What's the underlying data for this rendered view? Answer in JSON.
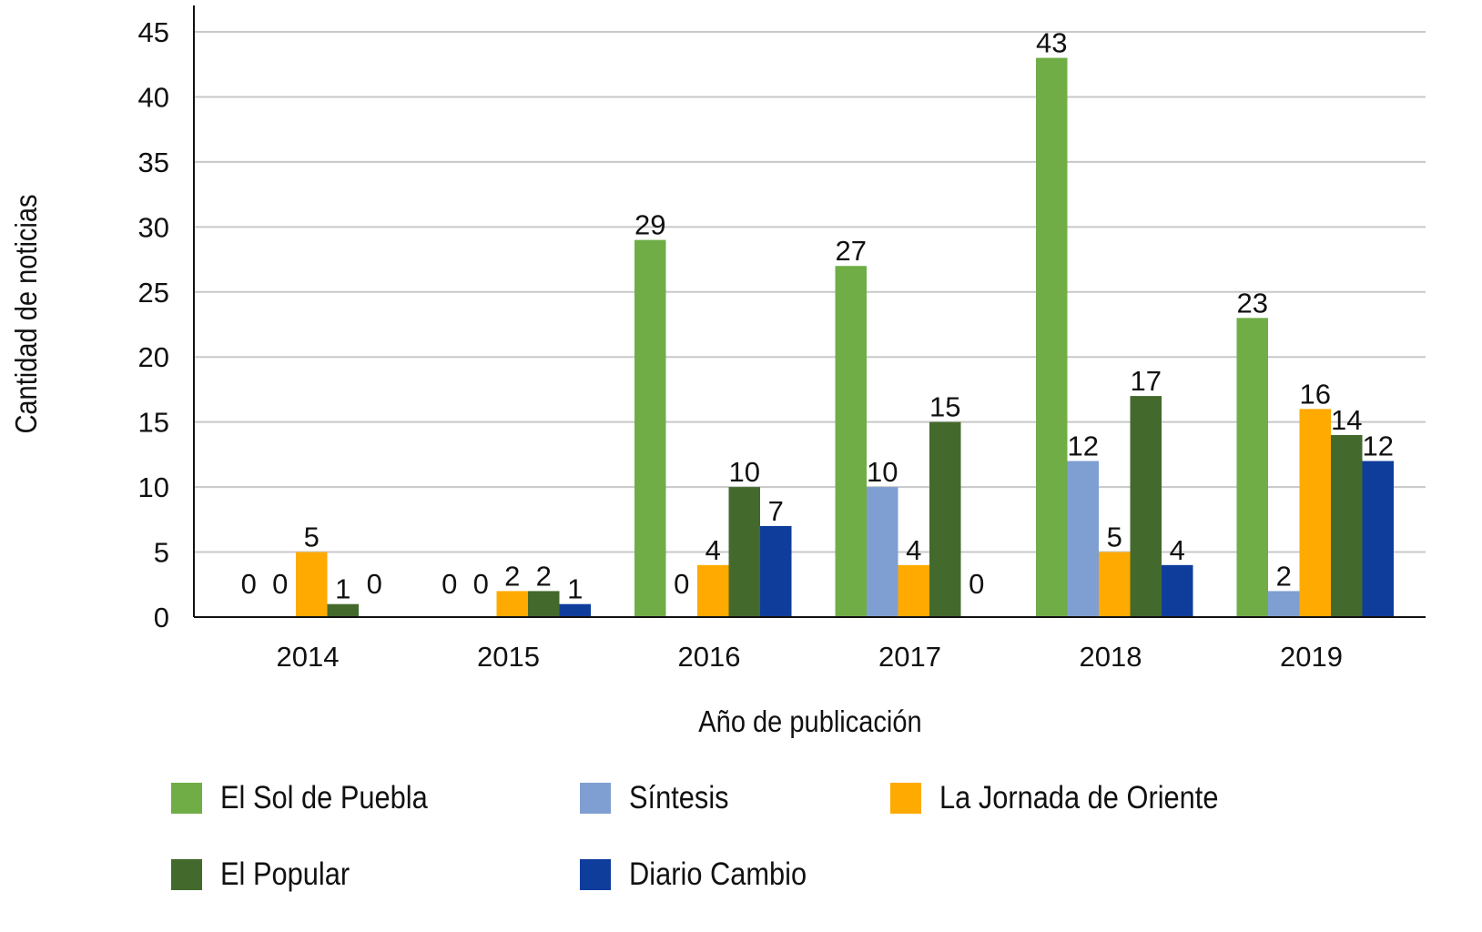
{
  "chart_data": {
    "type": "bar",
    "title": "",
    "xlabel": "Año de publicación",
    "ylabel": "Cantidad de noticias",
    "ylim": [
      0,
      45
    ],
    "yticks": [
      0,
      5,
      10,
      15,
      20,
      25,
      30,
      35,
      40,
      45
    ],
    "grid": true,
    "legend_position": "bottom",
    "categories": [
      "2014",
      "2015",
      "2016",
      "2017",
      "2018",
      "2019"
    ],
    "series": [
      {
        "name": "El Sol de Puebla",
        "color": "#70AD47",
        "values": [
          0,
          0,
          29,
          27,
          43,
          23
        ]
      },
      {
        "name": "Síntesis",
        "color": "#7F9FD2",
        "values": [
          0,
          0,
          0,
          10,
          12,
          2
        ]
      },
      {
        "name": "La Jornada de Oriente",
        "color": "#FFAA00",
        "values": [
          5,
          2,
          4,
          4,
          5,
          16
        ]
      },
      {
        "name": "El Popular",
        "color": "#436A2C",
        "values": [
          1,
          2,
          10,
          15,
          17,
          14
        ]
      },
      {
        "name": "Diario Cambio",
        "color": "#0F3D9C",
        "values": [
          0,
          1,
          7,
          0,
          4,
          12
        ]
      }
    ]
  }
}
